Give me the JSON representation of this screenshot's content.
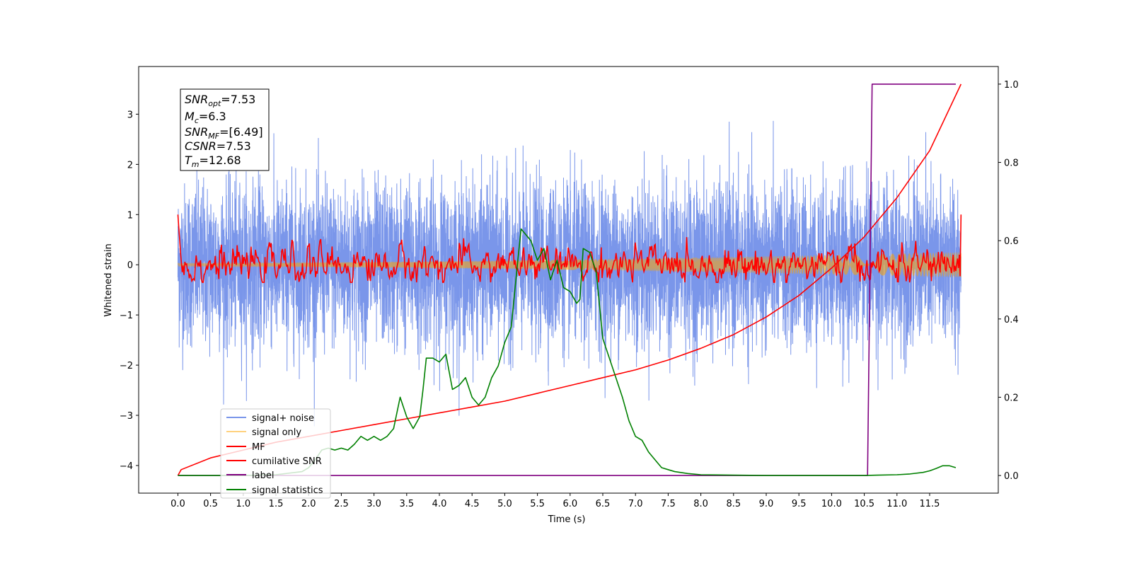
{
  "chart_data": {
    "type": "line",
    "xlabel": "Time (s)",
    "ylabel": "Whitened strain",
    "xlim": [
      -0.6,
      12.55
    ],
    "ylim": [
      -4.55,
      3.95
    ],
    "y2lim": [
      -0.045,
      1.045
    ],
    "xticks": [
      0.0,
      0.5,
      1.0,
      1.5,
      2.0,
      2.5,
      3.0,
      3.5,
      4.0,
      4.5,
      5.0,
      5.5,
      6.0,
      6.5,
      7.0,
      7.5,
      8.0,
      8.5,
      9.0,
      9.5,
      10.0,
      10.5,
      11.0,
      11.5
    ],
    "xtick_labels": [
      "0.0",
      "0.5",
      "1.0",
      "1.5",
      "2.0",
      "2.5",
      "3.0",
      "3.5",
      "4.0",
      "4.5",
      "5.0",
      "5.5",
      "6.0",
      "6.5",
      "7.0",
      "7.5",
      "8.0",
      "8.5",
      "9.0",
      "9.5",
      "10.0",
      "10.5",
      "11.0",
      "11.5"
    ],
    "yticks": [
      -4,
      -3,
      -2,
      -1,
      0,
      1,
      2,
      3
    ],
    "ytick_labels": [
      "−4",
      "−3",
      "−2",
      "−1",
      "0",
      "1",
      "2",
      "3"
    ],
    "y2ticks": [
      0.0,
      0.2,
      0.4,
      0.6,
      0.8,
      1.0
    ],
    "y2tick_labels": [
      "0.0",
      "0.2",
      "0.4",
      "0.6",
      "0.8",
      "1.0"
    ],
    "legend_position": "lower-left",
    "annotation": {
      "snr_opt": "=7.53",
      "mc": "=6.3",
      "snr_mf": "=[6.49]",
      "csnr": "=7.53",
      "tm": "=12.68"
    },
    "series": [
      {
        "name": "signal+ noise",
        "color": "#4169e1",
        "axis": "left",
        "kind": "noise",
        "t_range": [
          0.0,
          11.98
        ],
        "sigma": 0.8,
        "y_range": [
          -3.3,
          3.6
        ]
      },
      {
        "name": "signal only",
        "color": "#ffa500",
        "axis": "left",
        "kind": "chirp",
        "t_range": [
          0.0,
          11.98
        ],
        "amp_start": 0.03,
        "amp_end": 0.25
      },
      {
        "name": "MF",
        "color": "#ff0000",
        "axis": "left",
        "kind": "mf",
        "t_range": [
          0.0,
          11.98
        ],
        "start": 1.0,
        "end": 1.0,
        "sigma": 0.15
      },
      {
        "name": "cumilative SNR",
        "color": "#ff0000",
        "axis": "right",
        "x": [
          0.0,
          0.05,
          0.5,
          1.0,
          1.5,
          2.0,
          2.5,
          3.0,
          3.5,
          4.0,
          4.5,
          5.0,
          5.5,
          6.0,
          6.5,
          7.0,
          7.5,
          8.0,
          8.5,
          9.0,
          9.5,
          10.0,
          10.5,
          11.0,
          11.5,
          11.98
        ],
        "y": [
          0.0,
          0.015,
          0.045,
          0.065,
          0.085,
          0.1,
          0.115,
          0.13,
          0.145,
          0.16,
          0.175,
          0.19,
          0.21,
          0.23,
          0.25,
          0.27,
          0.295,
          0.325,
          0.36,
          0.405,
          0.46,
          0.53,
          0.61,
          0.71,
          0.83,
          1.0
        ]
      },
      {
        "name": "label",
        "color": "#800080",
        "axis": "right",
        "x": [
          0.0,
          10.55,
          10.62,
          11.9
        ],
        "y": [
          0.0,
          0.0,
          1.0,
          1.0
        ]
      },
      {
        "name": "signal statistics",
        "color": "#008000",
        "axis": "right",
        "x": [
          0.0,
          1.0,
          1.5,
          1.9,
          2.0,
          2.1,
          2.2,
          2.3,
          2.4,
          2.5,
          2.6,
          2.7,
          2.8,
          2.9,
          3.0,
          3.1,
          3.2,
          3.3,
          3.4,
          3.5,
          3.6,
          3.7,
          3.75,
          3.8,
          3.9,
          4.0,
          4.1,
          4.2,
          4.3,
          4.4,
          4.5,
          4.6,
          4.7,
          4.8,
          4.9,
          5.0,
          5.1,
          5.2,
          5.25,
          5.3,
          5.4,
          5.5,
          5.6,
          5.7,
          5.8,
          5.9,
          6.0,
          6.1,
          6.15,
          6.2,
          6.3,
          6.4,
          6.5,
          6.6,
          6.7,
          6.8,
          6.9,
          7.0,
          7.1,
          7.2,
          7.3,
          7.4,
          7.5,
          7.6,
          7.8,
          8.0,
          8.5,
          9.0,
          9.5,
          10.0,
          10.5,
          10.7,
          11.0,
          11.2,
          11.4,
          11.5,
          11.6,
          11.7,
          11.8,
          11.9
        ],
        "y": [
          0.0,
          0.0,
          0.002,
          0.01,
          0.02,
          0.04,
          0.065,
          0.07,
          0.065,
          0.07,
          0.065,
          0.08,
          0.1,
          0.09,
          0.1,
          0.09,
          0.1,
          0.12,
          0.2,
          0.15,
          0.12,
          0.15,
          0.22,
          0.3,
          0.3,
          0.29,
          0.31,
          0.22,
          0.23,
          0.25,
          0.2,
          0.18,
          0.2,
          0.25,
          0.28,
          0.34,
          0.38,
          0.55,
          0.63,
          0.62,
          0.6,
          0.55,
          0.58,
          0.5,
          0.55,
          0.48,
          0.47,
          0.44,
          0.45,
          0.58,
          0.57,
          0.52,
          0.35,
          0.3,
          0.25,
          0.2,
          0.14,
          0.1,
          0.09,
          0.06,
          0.04,
          0.02,
          0.015,
          0.01,
          0.005,
          0.002,
          0.001,
          0.0,
          0.0,
          0.0,
          0.0,
          0.001,
          0.002,
          0.004,
          0.008,
          0.012,
          0.018,
          0.025,
          0.025,
          0.02
        ]
      }
    ]
  },
  "legend_items": [
    "signal+ noise",
    "signal only",
    "MF",
    "cumilative SNR",
    "label",
    "signal statistics"
  ]
}
